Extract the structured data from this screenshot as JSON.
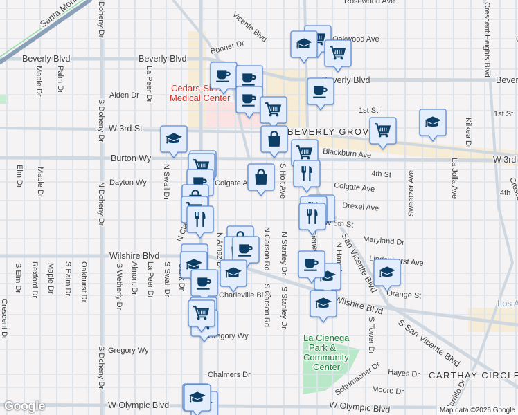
{
  "map": {
    "attribution": "Map data ©2026 Google",
    "logo": "Google",
    "colors": {
      "marker_fill": "#e3edfb",
      "marker_border": "#5b8fdc",
      "marker_icon": "#0d3f66",
      "road": "#dde3ea",
      "major_road": "#cfd8e1",
      "park": "#b9e8c8",
      "commercial": "#f7ecd6",
      "hospital": "#fbe3e3",
      "highway": "#8aa0b8"
    },
    "labels": [
      "Santa Monica Blvd",
      "Vicente Blvd",
      "Rosewood Ave",
      "Oakwood Ave",
      "Oakwo",
      "Beverly Blvd",
      "Beverly Blvd",
      "Beverly Blvd",
      "Beverl",
      "Bonner Dr",
      "Alden Dr",
      "Maple Dr",
      "Palm Dr",
      "La Peer Dr",
      "S Doheny Dr",
      "N Doheny Dr",
      "Doheny Dr",
      "Cedars-Sinai",
      "Medical Center",
      "W 3rd St",
      "BEVERLY GROVE",
      "1st St",
      "1st St",
      "W 3rd",
      "Blackburn Ave",
      "Burton Wy",
      "Dayton Wy",
      "Colgate Ave",
      "Colgate Ave",
      "4th St",
      "4th",
      "Drexel Ave",
      "W 5th St",
      "Maryland Dr",
      "Lindenhurst Ave",
      "Orange St",
      "Wilshire Blvd",
      "Wilshire Blvd",
      "San Vicente Blvd",
      "S San Vicente Blvd",
      "Charleville Blvd",
      "Gregory Wy",
      "Gregory Wy",
      "Chalmers Dr",
      "W Olympic Blvd",
      "W Olympic Blvd",
      "Hayes Dr",
      "Moore Dr",
      "Schumacher Dr",
      "CARTHAY CIRCLE",
      "La Cienega",
      "Park &",
      "Community",
      "Center",
      "Los A",
      "Elm Dr",
      "Maple Dr",
      "N Swall Dr",
      "S Elm Dr",
      "Rexford Dr",
      "Maple Dr",
      "S Palm Dr",
      "Oakhurst Dr",
      "S Wetherly Dr",
      "Almont Dr",
      "La Peer Dr",
      "S Swall Dr",
      "Clark Dr",
      "Crescent Dr",
      "S Doheny Dr",
      "N Carson Rd",
      "S Carson Rd",
      "N Stanley Dr",
      "S Stanley Dr",
      "S Holt Ave",
      "S Tower Dr",
      "Sweetzer Ave",
      "La Jolla Ave",
      "Kilkea Dr",
      "Crescent Heights Blvd",
      "Crescent Heights Blvd",
      "Carrillo Dr",
      "N Hamel",
      "N Clark Dr",
      "N Arnaz Dr",
      "La Cienega Blvd"
    ],
    "markers": [
      "cart",
      "school",
      "cart",
      "coffee",
      "coffee",
      "coffee",
      "coffee",
      "cart",
      "school",
      "cart",
      "bag",
      "cart",
      "restaurant",
      "school",
      "cart",
      "cart",
      "coffee",
      "bag",
      "bag",
      "cart",
      "restaurant",
      "restaurant",
      "restaurant",
      "restaurant",
      "bag",
      "bag",
      "coffee",
      "coffee",
      "school",
      "school",
      "coffee",
      "school",
      "coffee",
      "school",
      "cart",
      "school",
      "school",
      "cart",
      "cart",
      "school",
      "school"
    ]
  }
}
